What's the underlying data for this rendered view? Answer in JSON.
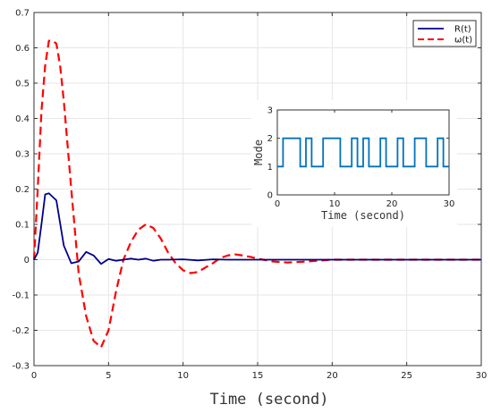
{
  "colors": {
    "r_series": "#00008B",
    "omega_series": "#FF0000",
    "mode_series": "#0072BD",
    "grid": "#E6E6E6",
    "axis": "#333333"
  },
  "chart_data": [
    {
      "id": "main",
      "type": "line",
      "title": "",
      "xlabel": "Time (second)",
      "ylabel": "",
      "xlim": [
        0,
        30
      ],
      "ylim": [
        -0.3,
        0.7
      ],
      "grid": true,
      "legend_position": "top-right",
      "x_ticks": [
        "0",
        "5",
        "10",
        "15",
        "20",
        "25",
        "30"
      ],
      "y_ticks": [
        "-0.3",
        "-0.2",
        "-0.1",
        "0",
        "0.1",
        "0.2",
        "0.3",
        "0.4",
        "0.5",
        "0.6",
        "0.7"
      ],
      "series": [
        {
          "name": "R(t)",
          "style": "solid",
          "x": [
            0,
            0.25,
            0.5,
            0.75,
            1.0,
            1.5,
            2.0,
            2.5,
            3.0,
            3.5,
            4.0,
            4.5,
            5.0,
            5.5,
            6.0,
            6.5,
            7.0,
            7.5,
            8.0,
            8.5,
            9.0,
            10.0,
            11.0,
            12.0,
            13.0,
            14.0,
            15.0,
            17.0,
            20.0,
            25.0,
            30.0
          ],
          "y": [
            0,
            0.02,
            0.1,
            0.185,
            0.188,
            0.168,
            0.04,
            -0.01,
            -0.005,
            0.022,
            0.012,
            -0.012,
            0.002,
            -0.003,
            0.0,
            0.003,
            0.0,
            0.003,
            -0.003,
            0.0,
            0.0,
            0.001,
            -0.002,
            0.001,
            0.0,
            0.0,
            0.0,
            0.0,
            0.0,
            0.0,
            0.0
          ]
        },
        {
          "name": "ω(t)",
          "style": "dashed",
          "x": [
            0,
            0.25,
            0.5,
            0.75,
            1.0,
            1.25,
            1.5,
            1.75,
            2.0,
            2.5,
            3.0,
            3.5,
            4.0,
            4.5,
            5.0,
            5.5,
            6.0,
            6.5,
            7.0,
            7.5,
            8.0,
            8.5,
            9.0,
            9.5,
            10.0,
            10.5,
            11.0,
            11.5,
            12.0,
            12.5,
            13.0,
            13.5,
            14.0,
            14.5,
            15.0,
            16.0,
            17.0,
            18.0,
            19.0,
            20.0,
            22.0,
            25.0,
            30.0
          ],
          "y": [
            0,
            0.2,
            0.42,
            0.55,
            0.62,
            0.62,
            0.612,
            0.55,
            0.45,
            0.2,
            -0.04,
            -0.16,
            -0.23,
            -0.248,
            -0.2,
            -0.09,
            0.0,
            0.05,
            0.085,
            0.1,
            0.09,
            0.06,
            0.02,
            -0.01,
            -0.03,
            -0.038,
            -0.035,
            -0.022,
            -0.01,
            0.005,
            0.012,
            0.015,
            0.012,
            0.008,
            0.003,
            -0.005,
            -0.008,
            -0.006,
            -0.003,
            0.0,
            0.0,
            0.0,
            0.0
          ]
        }
      ]
    },
    {
      "id": "inset",
      "type": "line",
      "title": "",
      "xlabel": "Time (second)",
      "ylabel": "Mode",
      "xlim": [
        0,
        30
      ],
      "ylim": [
        0,
        3
      ],
      "grid": false,
      "x_ticks": [
        "0",
        "10",
        "20",
        "30"
      ],
      "y_ticks": [
        "0",
        "1",
        "2",
        "3"
      ],
      "series": [
        {
          "style": "step",
          "x": [
            0,
            1,
            1,
            4,
            4,
            5,
            5,
            6,
            6,
            8,
            8,
            11,
            11,
            13,
            13,
            14,
            14,
            15,
            15,
            16,
            16,
            18,
            18,
            19,
            19,
            21,
            21,
            22,
            22,
            24,
            24,
            26,
            26,
            28,
            28,
            29,
            29,
            30
          ],
          "y": [
            1,
            1,
            2,
            2,
            1,
            1,
            2,
            2,
            1,
            1,
            2,
            2,
            1,
            1,
            2,
            2,
            1,
            1,
            2,
            2,
            1,
            1,
            2,
            2,
            1,
            1,
            2,
            2,
            1,
            1,
            2,
            2,
            1,
            1,
            2,
            2,
            1,
            1
          ]
        }
      ]
    }
  ]
}
